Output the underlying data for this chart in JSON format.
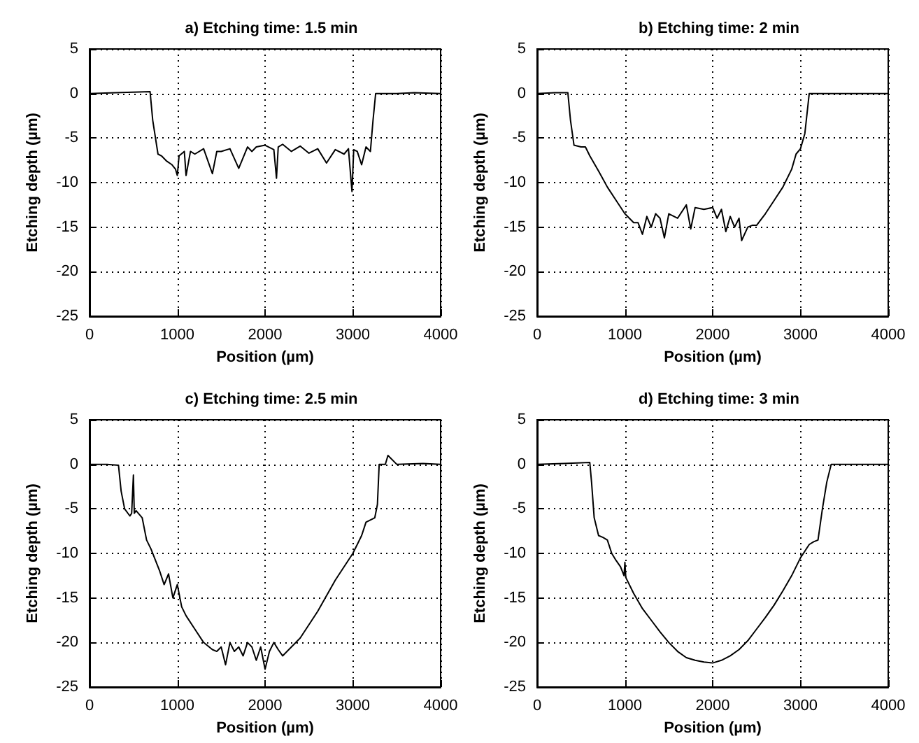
{
  "chart_data": [
    {
      "type": "line",
      "title": "a) Etching time: 1.5 min",
      "xlabel": "Position (µm)",
      "ylabel": "Etching depth (µm)",
      "color": "#000000",
      "xlim": [
        0,
        4000
      ],
      "ylim": [
        -25,
        5
      ],
      "xticks": [
        0,
        1000,
        2000,
        3000,
        4000
      ],
      "yticks": [
        -25,
        -20,
        -15,
        -10,
        -5,
        0,
        5
      ],
      "grid": true,
      "x": [
        0,
        300,
        690,
        720,
        780,
        820,
        880,
        940,
        980,
        1000,
        1020,
        1080,
        1100,
        1150,
        1200,
        1300,
        1400,
        1450,
        1500,
        1600,
        1700,
        1800,
        1850,
        1900,
        2000,
        2100,
        2130,
        2150,
        2200,
        2300,
        2400,
        2500,
        2600,
        2700,
        2800,
        2900,
        2950,
        2990,
        3010,
        3050,
        3100,
        3150,
        3200,
        3230,
        3260,
        3500,
        3700,
        4000
      ],
      "values": [
        0,
        0.1,
        0.2,
        -3,
        -6.8,
        -7,
        -7.6,
        -8,
        -8.5,
        -9.2,
        -7,
        -6.5,
        -9.2,
        -6.5,
        -6.8,
        -6.2,
        -9,
        -6.5,
        -6.5,
        -6.2,
        -8.4,
        -6,
        -6.5,
        -6,
        -5.8,
        -6.3,
        -9.5,
        -6,
        -5.7,
        -6.5,
        -5.9,
        -6.7,
        -6.2,
        -7.8,
        -6.3,
        -6.8,
        -6.2,
        -11,
        -6.3,
        -6.5,
        -8,
        -6,
        -6.5,
        -3,
        0,
        0,
        0.1,
        0
      ]
    },
    {
      "type": "line",
      "title": "b) Etching time: 2 min",
      "xlabel": "Position (µm)",
      "ylabel": "Etching depth (µm)",
      "color": "#000000",
      "xlim": [
        0,
        4000
      ],
      "ylim": [
        -25,
        5
      ],
      "xticks": [
        0,
        1000,
        2000,
        3000,
        4000
      ],
      "yticks": [
        -25,
        -20,
        -15,
        -10,
        -5,
        0,
        5
      ],
      "grid": true,
      "x": [
        0,
        200,
        350,
        380,
        420,
        500,
        550,
        600,
        700,
        800,
        900,
        1000,
        1100,
        1150,
        1200,
        1250,
        1300,
        1350,
        1400,
        1450,
        1500,
        1600,
        1700,
        1750,
        1800,
        1900,
        2000,
        2050,
        2100,
        2150,
        2200,
        2250,
        2300,
        2330,
        2400,
        2450,
        2500,
        2600,
        2700,
        2800,
        2900,
        2950,
        3000,
        3050,
        3100,
        3300,
        3600,
        4000
      ],
      "values": [
        0,
        0.1,
        0.1,
        -3,
        -5.8,
        -6,
        -6,
        -7,
        -8.7,
        -10.5,
        -12,
        -13.5,
        -14.5,
        -14.5,
        -15.8,
        -13.8,
        -15,
        -13.5,
        -14,
        -16.2,
        -13.5,
        -14,
        -12.5,
        -15.2,
        -12.8,
        -13,
        -12.8,
        -14,
        -13,
        -15.5,
        -13.8,
        -15,
        -14,
        -16.5,
        -15,
        -14.8,
        -14.8,
        -13.5,
        -12,
        -10.5,
        -8.5,
        -6.8,
        -6.2,
        -4.5,
        0,
        0,
        0,
        0
      ]
    },
    {
      "type": "line",
      "title": "c) Etching time: 2.5 min",
      "xlabel": "Position (µm)",
      "ylabel": "Etching depth (µm)",
      "color": "#000000",
      "xlim": [
        0,
        4000
      ],
      "ylim": [
        -25,
        5
      ],
      "xticks": [
        0,
        1000,
        2000,
        3000,
        4000
      ],
      "yticks": [
        -25,
        -20,
        -15,
        -10,
        -5,
        0,
        5
      ],
      "grid": true,
      "x": [
        0,
        200,
        330,
        360,
        400,
        460,
        480,
        500,
        510,
        530,
        600,
        650,
        700,
        800,
        850,
        900,
        950,
        1000,
        1050,
        1100,
        1200,
        1300,
        1400,
        1450,
        1500,
        1550,
        1600,
        1650,
        1700,
        1750,
        1800,
        1850,
        1900,
        1950,
        2000,
        2050,
        2100,
        2150,
        2200,
        2300,
        2400,
        2600,
        2800,
        3000,
        3100,
        3150,
        3250,
        3280,
        3300,
        3370,
        3400,
        3500,
        3800,
        4000
      ],
      "values": [
        0,
        0,
        -0.1,
        -3,
        -5,
        -5.8,
        -5.5,
        -1.2,
        -5.5,
        -5.2,
        -6,
        -8.5,
        -9.5,
        -12,
        -13.5,
        -12.3,
        -15,
        -13.5,
        -16,
        -17,
        -18.5,
        -20,
        -20.8,
        -21,
        -20.5,
        -22.5,
        -20,
        -21,
        -20.5,
        -21.5,
        -20,
        -20.5,
        -22,
        -20.5,
        -23,
        -21,
        -20,
        -20.8,
        -21.5,
        -20.5,
        -19.5,
        -16.5,
        -13,
        -10,
        -8,
        -6.5,
        -6,
        -4.5,
        0,
        0,
        1,
        0,
        0.1,
        0
      ]
    },
    {
      "type": "line",
      "title": "d) Etching time: 3 min",
      "xlabel": "Position (µm)",
      "ylabel": "Etching depth (µm)",
      "color": "#000000",
      "xlim": [
        0,
        4000
      ],
      "ylim": [
        -25,
        5
      ],
      "xticks": [
        0,
        1000,
        2000,
        3000,
        4000
      ],
      "yticks": [
        -25,
        -20,
        -15,
        -10,
        -5,
        0,
        5
      ],
      "grid": true,
      "x": [
        0,
        300,
        600,
        620,
        650,
        700,
        750,
        800,
        850,
        900,
        950,
        990,
        1000,
        1010,
        1100,
        1200,
        1300,
        1400,
        1500,
        1600,
        1700,
        1800,
        1900,
        2000,
        2100,
        2200,
        2300,
        2400,
        2500,
        2600,
        2700,
        2800,
        2900,
        3000,
        3100,
        3150,
        3200,
        3250,
        3300,
        3350,
        3600,
        4000
      ],
      "values": [
        0,
        0.1,
        0.2,
        -2,
        -6,
        -8,
        -8.2,
        -8.5,
        -10,
        -10.8,
        -11.5,
        -12.5,
        -11,
        -12.7,
        -14.5,
        -16.2,
        -17.5,
        -18.8,
        -20,
        -21,
        -21.7,
        -22,
        -22.2,
        -22.3,
        -22,
        -21.5,
        -20.8,
        -19.8,
        -18.5,
        -17.2,
        -15.8,
        -14.2,
        -12.5,
        -10.5,
        -9,
        -8.7,
        -8.5,
        -5,
        -2,
        0,
        0,
        0
      ]
    }
  ]
}
